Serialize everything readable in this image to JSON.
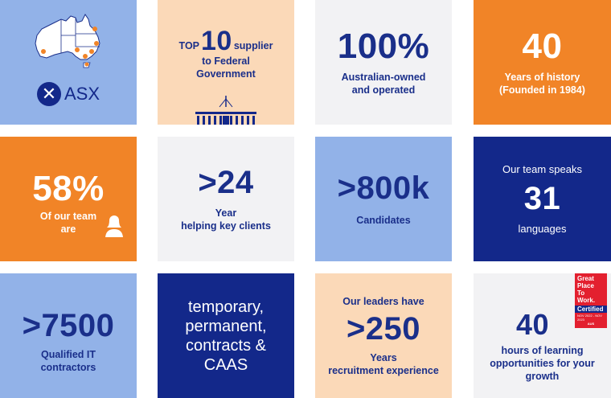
{
  "colors": {
    "light_blue": "#92b2e8",
    "peach": "#fbd9b8",
    "light_grey": "#f2f2f4",
    "orange": "#f18427",
    "navy": "#13288a",
    "map_dot": "#f18427",
    "gptw_red": "#e3202f"
  },
  "tiles": {
    "asx": {
      "logo_text": "ASX"
    },
    "top10": {
      "prefix": "TOP",
      "number": "10",
      "suffix": "supplier",
      "line2": "to Federal",
      "line3": "Government",
      "icon": "parliament-house-icon"
    },
    "owned": {
      "number": "100%",
      "line1": "Australian-owned",
      "line2": "and operated"
    },
    "history": {
      "number": "40",
      "line1": "Years of history",
      "line2": "(Founded in 1984)"
    },
    "women": {
      "number": "58%",
      "line1": "Of our team",
      "line2": "are",
      "icon": "female-person-icon"
    },
    "clients": {
      "number": ">24",
      "line1": "Year",
      "line2": "helping key clients"
    },
    "candidates": {
      "number": ">800k",
      "line1": "Candidates"
    },
    "languages": {
      "line1": "Our team speaks",
      "number": "31",
      "line2": "languages"
    },
    "contractors": {
      "number": ">7500",
      "line1": "Qualified IT",
      "line2": "contractors"
    },
    "types": {
      "line1": "temporary,",
      "line2": "permanent,",
      "line3": "contracts &",
      "line4": "CAAS"
    },
    "leaders": {
      "line1": "Our leaders have",
      "number": ">250",
      "line2": "Years",
      "line3": "recruitment experience"
    },
    "learning": {
      "number": "40",
      "line1": "hours of learning",
      "line2": "opportunities for your",
      "line3": "growth",
      "badge": {
        "l1": "Great",
        "l2": "Place",
        "l3": "To",
        "l4": "Work.",
        "l5": "Certified",
        "l6": "NOV 2022 - NOV 2023",
        "l7": "AUS"
      }
    }
  }
}
